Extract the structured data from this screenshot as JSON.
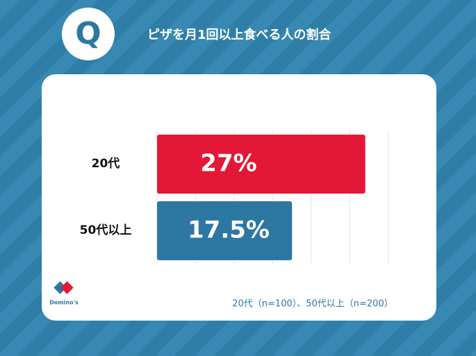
{
  "chart_data": {
    "type": "hbar",
    "title": "ピザを月1回以上食べる人の割合",
    "badge": "Q",
    "categories": [
      "20代",
      "50代以上"
    ],
    "values": [
      27,
      17.5
    ],
    "value_labels": [
      "27%",
      "17.5%"
    ],
    "colors": [
      "#e31837",
      "#2d77a3"
    ],
    "xlim": [
      0,
      30
    ],
    "xticks": [
      0,
      5,
      10,
      15,
      20,
      25,
      30
    ],
    "grid": true,
    "note": "20代（n=100）、50代以上（n=200）",
    "brand": "Domino's"
  }
}
